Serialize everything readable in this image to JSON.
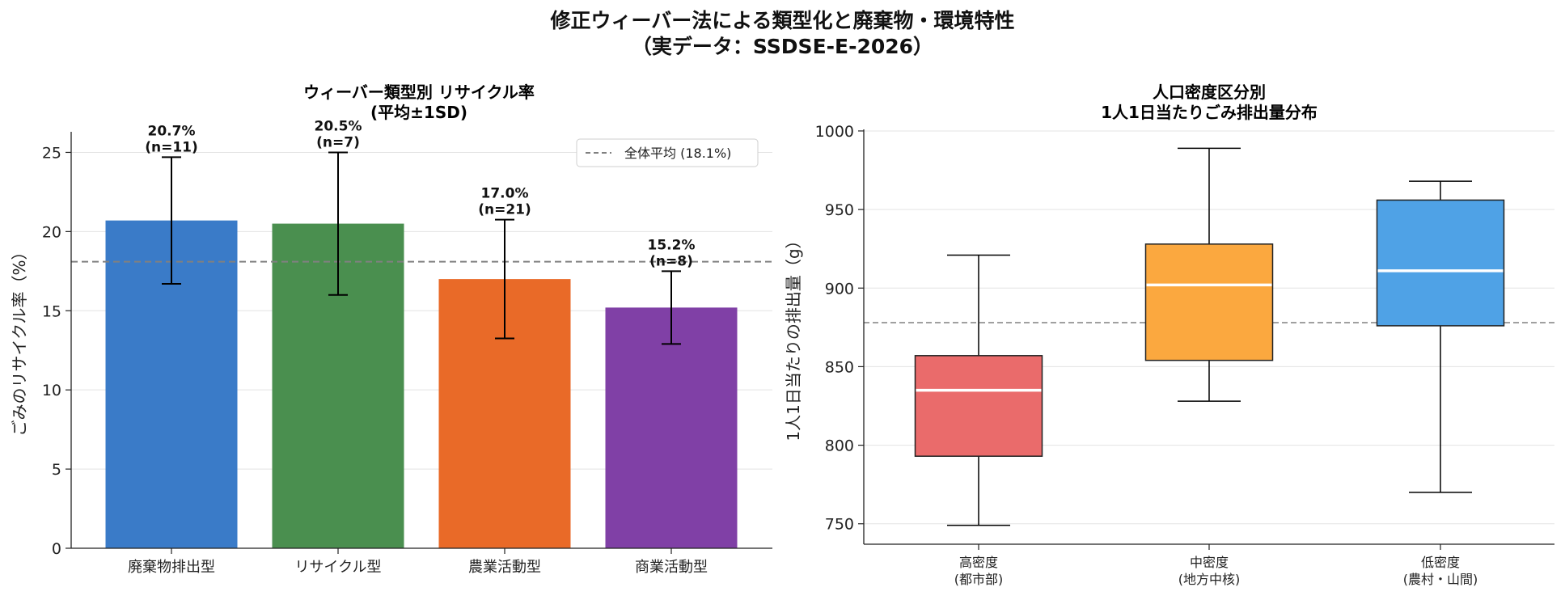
{
  "figure": {
    "title_line1": "修正ウィーバー法による類型化と廃棄物・環境特性",
    "title_line2": "（実データ：SSDSE-E-2026）"
  },
  "chart_data": [
    {
      "type": "bar",
      "title": "ウィーバー類型別 リサイクル率\n(平均±1SD)",
      "ylabel": "ごみのリサイクル率（%）",
      "xlabel": "",
      "categories": [
        "廃棄物排出型",
        "リサイクル型",
        "農業活動型",
        "商業活動型"
      ],
      "values": [
        20.7,
        20.5,
        17.0,
        15.2
      ],
      "sd": [
        4.0,
        4.5,
        3.75,
        2.3
      ],
      "n": [
        11,
        7,
        21,
        8
      ],
      "value_labels": [
        "20.7%\n(n=11)",
        "20.5%\n(n=7)",
        "17.0%\n(n=21)",
        "15.2%\n(n=8)"
      ],
      "colors": [
        "#3a7bc8",
        "#4a8f4f",
        "#e96a28",
        "#8040a6"
      ],
      "ylim": [
        0,
        26.3
      ],
      "yticks": [
        0,
        5,
        10,
        15,
        20,
        25
      ],
      "reference_line": {
        "value": 18.1,
        "label": "全体平均 (18.1%)",
        "color": "#808080"
      },
      "legend_position": "top-right",
      "grid": "horizontal"
    },
    {
      "type": "box",
      "title": "人口密度区分別\n1人1日当たりごみ排出量分布",
      "ylabel": "1人1日当たりの排出量（g）",
      "xlabel": "",
      "categories": [
        "高密度\n(都市部)",
        "中密度\n(地方中核)",
        "低密度\n(農村・山間)"
      ],
      "boxes": [
        {
          "whislo": 749,
          "q1": 793,
          "med": 835,
          "q3": 857,
          "whishi": 921
        },
        {
          "whislo": 828,
          "q1": 854,
          "med": 902,
          "q3": 928,
          "whishi": 989
        },
        {
          "whislo": 770,
          "q1": 876,
          "med": 911,
          "q3": 956,
          "whishi": 968
        }
      ],
      "colors": [
        "#ea6b6b",
        "#fba83f",
        "#4fa2e6"
      ],
      "median_color": "#ffffff",
      "reference_line": {
        "value": 878,
        "color": "#808080"
      },
      "ylim": [
        737,
        1001
      ],
      "yticks": [
        750,
        800,
        850,
        900,
        950,
        1000
      ],
      "grid": "horizontal"
    }
  ]
}
